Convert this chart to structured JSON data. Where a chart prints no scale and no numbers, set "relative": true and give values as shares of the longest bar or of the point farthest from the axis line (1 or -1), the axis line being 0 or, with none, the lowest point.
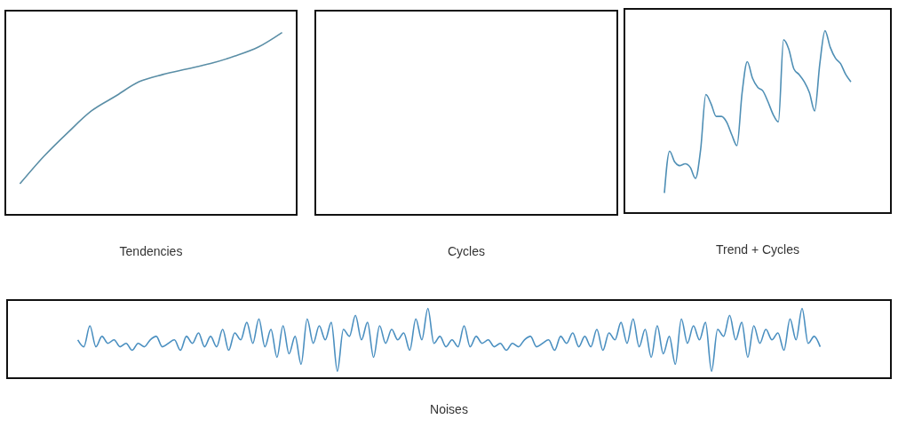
{
  "chart_data": [
    {
      "type": "line",
      "xlabel": "Tendencies",
      "relative": true,
      "categories": [
        null,
        null,
        null,
        null,
        null,
        null,
        null,
        null,
        null,
        null,
        null,
        null
      ],
      "series": [
        {
          "color": "#5a8ea6",
          "values": [
            0.17,
            0.32,
            0.45,
            0.57,
            0.65,
            0.73,
            0.77,
            0.8,
            0.83,
            0.87,
            0.92,
            1.0
          ]
        }
      ]
    },
    {
      "type": "other",
      "xlabel": "Cycles"
    },
    {
      "type": "line",
      "xlabel": "Trend + Cycles",
      "relative": true,
      "categories": [
        null,
        null,
        null,
        null,
        null,
        null,
        null,
        null,
        null,
        null,
        null,
        null,
        null,
        null,
        null,
        null,
        null,
        null,
        null,
        null,
        null,
        null,
        null,
        null,
        null,
        null,
        null,
        null,
        null,
        null,
        null,
        null,
        null,
        null,
        null,
        null,
        null
      ],
      "series": [
        {
          "color": "#4f8fb5",
          "values": [
            0.11,
            0.34,
            0.28,
            0.26,
            0.27,
            0.25,
            0.19,
            0.35,
            0.65,
            0.6,
            0.53,
            0.53,
            0.5,
            0.43,
            0.37,
            0.66,
            0.83,
            0.74,
            0.69,
            0.67,
            0.61,
            0.54,
            0.5,
            0.95,
            0.9,
            0.79,
            0.76,
            0.72,
            0.66,
            0.56,
            0.82,
            1.0,
            0.91,
            0.85,
            0.82,
            0.76,
            0.72
          ]
        }
      ]
    },
    {
      "type": "line",
      "xlabel": "Noises",
      "relative": true,
      "categories": [
        null,
        null,
        null,
        null,
        null,
        null,
        null,
        null,
        null,
        null,
        null,
        null,
        null,
        null,
        null,
        null,
        null,
        null,
        null,
        null,
        null,
        null,
        null,
        null,
        null,
        null,
        null,
        null,
        null,
        null,
        null,
        null,
        null,
        null,
        null,
        null,
        null,
        null,
        null,
        null,
        null,
        null,
        null,
        null,
        null,
        null,
        null,
        null,
        null,
        null,
        null,
        null,
        null,
        null,
        null,
        null,
        null,
        null,
        null,
        null,
        null,
        null,
        null,
        null,
        null,
        null,
        null,
        null,
        null,
        null,
        null,
        null,
        null,
        null,
        null,
        null,
        null,
        null,
        null,
        null,
        null,
        null,
        null,
        null,
        null,
        null,
        null,
        null,
        null,
        null,
        null,
        null,
        null,
        null,
        null,
        null,
        null,
        null,
        null,
        null,
        null,
        null,
        null,
        null,
        null,
        null,
        null,
        null,
        null,
        null,
        null,
        null,
        null,
        null,
        null,
        null,
        null,
        null,
        null,
        null,
        null,
        null,
        null,
        null
      ],
      "series": [
        {
          "color": "#4a8fc0",
          "values": [
            0.55,
            0.45,
            0.75,
            0.45,
            0.6,
            0.5,
            0.55,
            0.45,
            0.5,
            0.4,
            0.5,
            0.45,
            0.55,
            0.6,
            0.45,
            0.5,
            0.55,
            0.4,
            0.6,
            0.5,
            0.65,
            0.45,
            0.6,
            0.45,
            0.7,
            0.4,
            0.65,
            0.55,
            0.8,
            0.5,
            0.85,
            0.45,
            0.7,
            0.3,
            0.75,
            0.35,
            0.6,
            0.2,
            0.85,
            0.5,
            0.75,
            0.55,
            0.8,
            0.1,
            0.7,
            0.6,
            0.9,
            0.55,
            0.8,
            0.3,
            0.75,
            0.5,
            0.7,
            0.55,
            0.65,
            0.4,
            0.85,
            0.55,
            1.0,
            0.5,
            0.6,
            0.45,
            0.55,
            0.45,
            0.75,
            0.45,
            0.6,
            0.5,
            0.55,
            0.45,
            0.5,
            0.4,
            0.5,
            0.45,
            0.55,
            0.6,
            0.45,
            0.5,
            0.55,
            0.4,
            0.6,
            0.5,
            0.65,
            0.45,
            0.6,
            0.45,
            0.7,
            0.4,
            0.65,
            0.55,
            0.8,
            0.5,
            0.85,
            0.45,
            0.7,
            0.3,
            0.75,
            0.35,
            0.6,
            0.2,
            0.85,
            0.5,
            0.75,
            0.55,
            0.8,
            0.1,
            0.7,
            0.6,
            0.9,
            0.55,
            0.8,
            0.3,
            0.75,
            0.5,
            0.7,
            0.55,
            0.65,
            0.4,
            0.85,
            0.55,
            1.0,
            0.5,
            0.6,
            0.45
          ]
        }
      ]
    }
  ]
}
